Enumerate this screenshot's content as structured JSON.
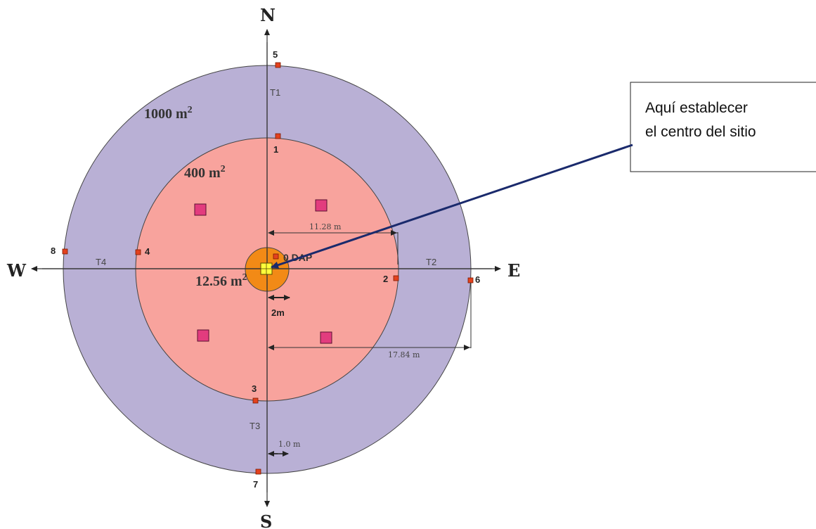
{
  "compass": {
    "north": "N",
    "south": "S",
    "east": "E",
    "west": "W"
  },
  "areas": {
    "outer": {
      "value": "1000 m",
      "exp": "2"
    },
    "inner": {
      "value": "400 m",
      "exp": "2"
    },
    "center": {
      "value": "12.56 m",
      "exp": "2"
    }
  },
  "transects": [
    "T1",
    "T2",
    "T3",
    "T4"
  ],
  "points": [
    "1",
    "2",
    "3",
    "4",
    "5",
    "6",
    "7",
    "8"
  ],
  "center_label": "0 DAP",
  "dimensions": {
    "inner_radius": "11.28 m",
    "outer_radius": "17.84 m",
    "center_radius": "2m",
    "offset": "1.0 m"
  },
  "callout": {
    "line1": "Aquí establecer",
    "line2": "el centro del sitio"
  },
  "colors": {
    "outer": "#b9b0d5",
    "inner": "#f8a39d",
    "center": "#f28a16",
    "marker": "#e3411e",
    "subplot": "#e23c7e",
    "center_square": "#ffff3b",
    "arrow": "#1a2a6c"
  }
}
